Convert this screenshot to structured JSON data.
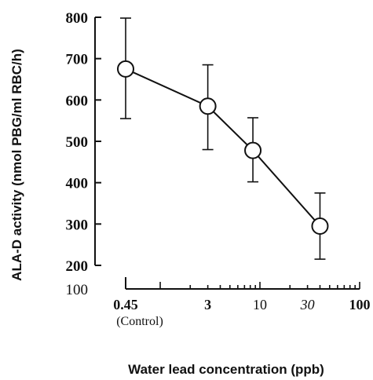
{
  "chart_data": {
    "type": "line",
    "xlabel": "Water lead concentration (ppb)",
    "ylabel": "ALA-D activity (nmol PBG/ml RBC/h)",
    "x_scale": "log",
    "xlim": [
      0.45,
      100
    ],
    "ylim": [
      100,
      800
    ],
    "y_ticks": [
      {
        "value": 800,
        "label": "800",
        "weight": "bold"
      },
      {
        "value": 700,
        "label": "700",
        "weight": "bold"
      },
      {
        "value": 600,
        "label": "600",
        "weight": "bold"
      },
      {
        "value": 500,
        "label": "500",
        "weight": "bold"
      },
      {
        "value": 400,
        "label": "400",
        "weight": "bold"
      },
      {
        "value": 300,
        "label": "300",
        "weight": "bold"
      },
      {
        "value": 200,
        "label": "200",
        "weight": "bold"
      },
      {
        "value": 100,
        "label": "100",
        "weight": "normal"
      }
    ],
    "x_ticks": [
      {
        "value": 0.45,
        "label": "0.45",
        "sublabel": "(Control)",
        "style": "bold"
      },
      {
        "value": 3,
        "label": "3",
        "style": "bold"
      },
      {
        "value": 10,
        "label": "10",
        "style": "plain"
      },
      {
        "value": 30,
        "label": "30",
        "style": "italic"
      },
      {
        "value": 100,
        "label": "100",
        "style": "bold"
      }
    ],
    "series": [
      {
        "points": [
          {
            "x": 0.45,
            "y": 675,
            "err_low": 555,
            "err_high": 798
          },
          {
            "x": 3,
            "y": 585,
            "err_low": 480,
            "err_high": 685
          },
          {
            "x": 8.5,
            "y": 478,
            "err_low": 402,
            "err_high": 557
          },
          {
            "x": 40,
            "y": 295,
            "err_low": 215,
            "err_high": 375
          }
        ]
      }
    ],
    "grid": false,
    "marker": "open-circle"
  }
}
